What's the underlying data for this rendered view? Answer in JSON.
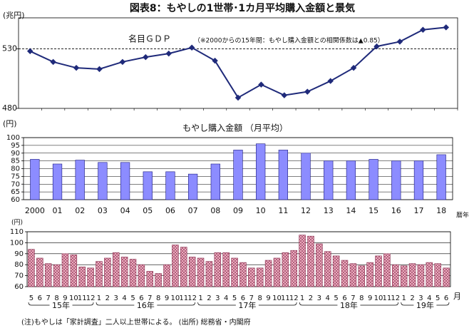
{
  "title": "図表8：もやしの1世帯･1カ月平均購入金額と景気",
  "note": "(注)もやしは「家計調査」二人以上世帯による。 (出所) 総務省・内閣府",
  "chart_data": [
    {
      "type": "line",
      "unit_label": "(兆円)",
      "series_label": "名目ＧＤＰ",
      "annotation": "（※2000からの15年間：もやし購入金額との相関係数は▲0.85）",
      "values": [
        528,
        519,
        514,
        513,
        519,
        523,
        526,
        531,
        520,
        489,
        500,
        491,
        494,
        503,
        514,
        532,
        536,
        546,
        548
      ],
      "color": "#1f2a7a",
      "ylim": [
        480,
        556
      ],
      "yticks": [
        480,
        530
      ],
      "refline": 530
    },
    {
      "type": "bar",
      "title": "もやし購入金額 （月平均）",
      "unit_label": "(円)",
      "x_end_label": "暦年",
      "categories": [
        "2000",
        "01",
        "02",
        "03",
        "04",
        "05",
        "06",
        "07",
        "08",
        "09",
        "10",
        "11",
        "12",
        "13",
        "14",
        "15",
        "16",
        "17",
        "18"
      ],
      "values": [
        86,
        83,
        85.5,
        84,
        84,
        78,
        78,
        76.5,
        83,
        92,
        96,
        92,
        90,
        85,
        85,
        86,
        85,
        85,
        89
      ],
      "color": "#8c8cff",
      "ylim": [
        60,
        100
      ],
      "yticks": [
        60,
        65,
        70,
        75,
        80,
        85,
        90,
        95,
        100
      ],
      "grid": true
    },
    {
      "type": "bar",
      "unit_label": "(円)",
      "x_end_label": "月",
      "color": "#f4b6c8",
      "ylim": [
        60,
        110
      ],
      "yticks": [
        60,
        70,
        80,
        90,
        100,
        110
      ],
      "grid": true,
      "groups": [
        {
          "label": "15年",
          "categories": [
            "5",
            "6",
            "7",
            "8",
            "9",
            "10",
            "11",
            "12"
          ],
          "values": [
            94,
            86,
            81,
            80,
            90,
            89,
            78,
            77
          ]
        },
        {
          "label": "16年",
          "categories": [
            "1",
            "2",
            "3",
            "4",
            "5",
            "6",
            "7",
            "8",
            "9",
            "10",
            "11",
            "12"
          ],
          "values": [
            83,
            86,
            91,
            87,
            85,
            80,
            74,
            72,
            80,
            98,
            96,
            87
          ]
        },
        {
          "label": "17年",
          "categories": [
            "1",
            "2",
            "3",
            "4",
            "5",
            "6",
            "7",
            "8",
            "9",
            "10",
            "11",
            "12"
          ],
          "values": [
            86,
            83,
            91,
            91,
            86,
            82,
            77,
            77,
            84,
            86,
            91,
            93
          ]
        },
        {
          "label": "18年",
          "categories": [
            "1",
            "2",
            "3",
            "4",
            "5",
            "6",
            "7",
            "8",
            "9",
            "10",
            "11",
            "12"
          ],
          "values": [
            107,
            106,
            99,
            92,
            88,
            84,
            81,
            79,
            82,
            88,
            90,
            80
          ]
        },
        {
          "label": "19年",
          "categories": [
            "1",
            "2",
            "3",
            "4",
            "5",
            "6"
          ],
          "values": [
            79,
            81,
            80,
            82,
            81,
            77
          ]
        }
      ]
    }
  ]
}
